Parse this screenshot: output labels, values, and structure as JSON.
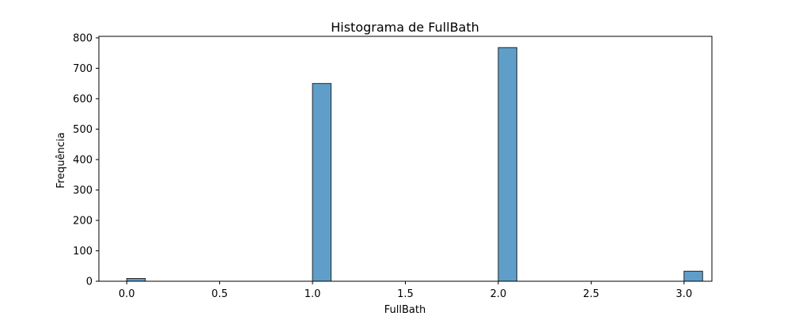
{
  "chart_data": {
    "type": "bar",
    "title": "Histograma de FullBath",
    "xlabel": "FullBath",
    "ylabel": "Frequência",
    "xlim": [
      -0.15,
      3.15
    ],
    "ylim": [
      0,
      805
    ],
    "grid": false,
    "bin_width": 0.1,
    "bars": [
      {
        "x": 0.0,
        "value": 9
      },
      {
        "x": 1.0,
        "value": 650
      },
      {
        "x": 2.0,
        "value": 768
      },
      {
        "x": 3.0,
        "value": 33
      }
    ],
    "x_ticks": [
      0.0,
      0.5,
      1.0,
      1.5,
      2.0,
      2.5,
      3.0
    ],
    "x_tick_labels": [
      "0.0",
      "0.5",
      "1.0",
      "1.5",
      "2.0",
      "2.5",
      "3.0"
    ],
    "y_ticks": [
      0,
      100,
      200,
      300,
      400,
      500,
      600,
      700,
      800
    ],
    "y_tick_labels": [
      "0",
      "100",
      "200",
      "300",
      "400",
      "500",
      "600",
      "700",
      "800"
    ],
    "bar_color": "#5f9ec9",
    "bar_edge_color": "#262626"
  }
}
